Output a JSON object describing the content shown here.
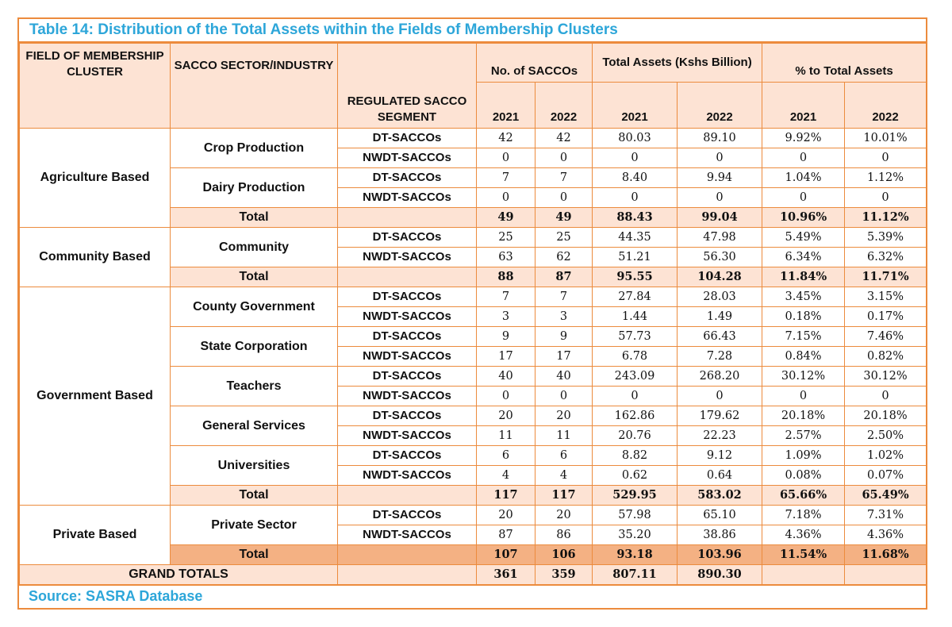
{
  "title": "Table 14: Distribution of the Total Assets within the Fields of Membership Clusters",
  "source": "Source: SASRA Database",
  "headers": {
    "cluster": "FIELD OF MEMBERSHIP CLUSTER",
    "sector": "SACCO SECTOR/INDUSTRY",
    "segment": "REGULATED SACCO SEGMENT",
    "num_saccos": "No. of SACCOs",
    "total_assets": "Total Assets (Kshs Billion)",
    "pct_assets": "% to Total Assets",
    "y2021": "2021",
    "y2022": "2022"
  },
  "clusters": [
    {
      "name": "Agriculture Based",
      "sectors": [
        {
          "name": "Crop Production",
          "rows": [
            {
              "segment": "DT-SACCOs",
              "values": [
                "42",
                "42",
                "80.03",
                "89.10",
                "9.92%",
                "10.01%"
              ]
            },
            {
              "segment": "NWDT-SACCOs",
              "values": [
                "0",
                "0",
                "0",
                "0",
                "0",
                "0"
              ]
            }
          ]
        },
        {
          "name": "Dairy Production",
          "rows": [
            {
              "segment": "DT-SACCOs",
              "values": [
                "7",
                "7",
                "8.40",
                "9.94",
                "1.04%",
                "1.12%"
              ]
            },
            {
              "segment": "NWDT-SACCOs",
              "values": [
                "0",
                "0",
                "0",
                "0",
                "0",
                "0"
              ]
            }
          ]
        }
      ],
      "total_label": "Total",
      "total": [
        "49",
        "49",
        "88.43",
        "99.04",
        "10.96%",
        "11.12%"
      ]
    },
    {
      "name": "Community Based",
      "sectors": [
        {
          "name": "Community",
          "rows": [
            {
              "segment": "DT-SACCOs",
              "values": [
                "25",
                "25",
                "44.35",
                "47.98",
                "5.49%",
                "5.39%"
              ]
            },
            {
              "segment": "NWDT-SACCOs",
              "values": [
                "63",
                "62",
                "51.21",
                "56.30",
                "6.34%",
                "6.32%"
              ]
            }
          ]
        }
      ],
      "total_label": "Total",
      "total": [
        "88",
        "87",
        "95.55",
        "104.28",
        "11.84%",
        "11.71%"
      ]
    },
    {
      "name": "Government Based",
      "sectors": [
        {
          "name": "County Government",
          "rows": [
            {
              "segment": "DT-SACCOs",
              "values": [
                "7",
                "7",
                "27.84",
                "28.03",
                "3.45%",
                "3.15%"
              ]
            },
            {
              "segment": "NWDT-SACCOs",
              "values": [
                "3",
                "3",
                "1.44",
                "1.49",
                "0.18%",
                "0.17%"
              ]
            }
          ]
        },
        {
          "name": "State Corporation",
          "rows": [
            {
              "segment": "DT-SACCOs",
              "values": [
                "9",
                "9",
                "57.73",
                "66.43",
                "7.15%",
                "7.46%"
              ]
            },
            {
              "segment": "NWDT-SACCOs",
              "values": [
                "17",
                "17",
                "6.78",
                "7.28",
                "0.84%",
                "0.82%"
              ]
            }
          ]
        },
        {
          "name": "Teachers",
          "rows": [
            {
              "segment": "DT-SACCOs",
              "values": [
                "40",
                "40",
                "243.09",
                "268.20",
                "30.12%",
                "30.12%"
              ]
            },
            {
              "segment": "NWDT-SACCOs",
              "values": [
                "0",
                "0",
                "0",
                "0",
                "0",
                "0"
              ]
            }
          ]
        },
        {
          "name": "General Services",
          "rows": [
            {
              "segment": "DT-SACCOs",
              "values": [
                "20",
                "20",
                "162.86",
                "179.62",
                "20.18%",
                "20.18%"
              ]
            },
            {
              "segment": "NWDT-SACCOs",
              "values": [
                "11",
                "11",
                "20.76",
                "22.23",
                "2.57%",
                "2.50%"
              ]
            }
          ]
        },
        {
          "name": "Universities",
          "rows": [
            {
              "segment": "DT-SACCOs",
              "values": [
                "6",
                "6",
                "8.82",
                "9.12",
                "1.09%",
                "1.02%"
              ]
            },
            {
              "segment": "NWDT-SACCOs",
              "values": [
                "4",
                "4",
                "0.62",
                "0.64",
                "0.08%",
                "0.07%"
              ]
            }
          ]
        }
      ],
      "total_label": "Total",
      "total": [
        "117",
        "117",
        "529.95",
        "583.02",
        "65.66%",
        "65.49%"
      ]
    },
    {
      "name": "Private Based",
      "sectors": [
        {
          "name": "Private Sector",
          "rows": [
            {
              "segment": "DT-SACCOs",
              "values": [
                "20",
                "20",
                "57.98",
                "65.10",
                "7.18%",
                "7.31%"
              ]
            },
            {
              "segment": "NWDT-SACCOs",
              "values": [
                "87",
                "86",
                "35.20",
                "38.86",
                "4.36%",
                "4.36%"
              ]
            }
          ]
        }
      ],
      "total_label": "Total",
      "total": [
        "107",
        "106",
        "93.18",
        "103.96",
        "11.54%",
        "11.68%"
      ],
      "total_highlight": true
    }
  ],
  "grand_total": {
    "label": "GRAND TOTALS",
    "values": [
      "361",
      "359",
      "807.11",
      "890.30",
      "",
      ""
    ]
  },
  "colors": {
    "border": "#ec8b3d",
    "title_text": "#2da6d9",
    "header_fill": "#fde3d4",
    "highlight_fill": "#f4b183"
  }
}
